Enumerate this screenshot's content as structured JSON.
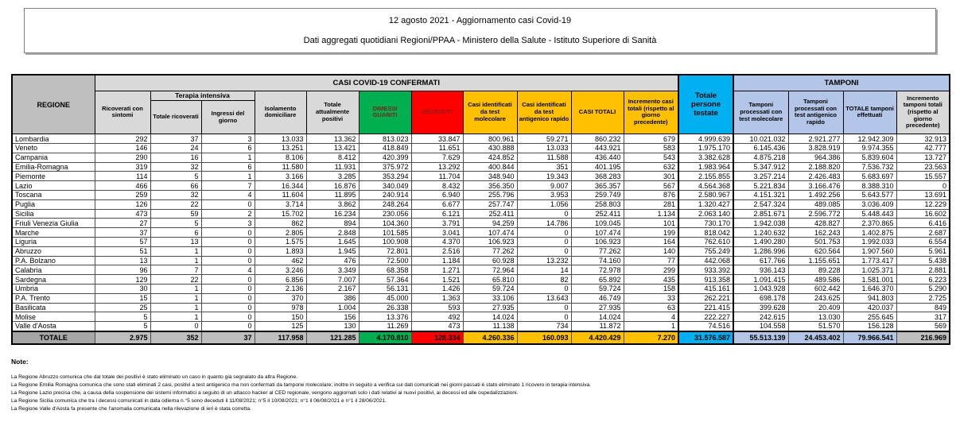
{
  "title": {
    "line1": "12 agosto 2021 - Aggiornamento casi Covid-19",
    "line2": "Dati aggregati quotidiani Regioni/PPAA - Ministero della Salute - Istituto Superiore di Sanità"
  },
  "table": {
    "group_headers": {
      "casi": "CASI COVID-19 CONFERMATI",
      "tamponi": "TAMPONI",
      "terapia_intensiva": "Terapia intensiva"
    },
    "columns": [
      "REGIONE",
      "Ricoverati con sintomi",
      "Totale ricoverati",
      "Ingressi del giorno",
      "Isolamento domiciliare",
      "Totale attualmente positivi",
      "DIMESSI GUARITI",
      "DECEDUTI",
      "Casi identificati da test molecolare",
      "Casi identificati da test antigenico rapido",
      "CASI TOTALI",
      "Incremento casi totali (rispetto al giorno precedente)",
      "Totale persone testate",
      "Tamponi processati con test molecolare",
      "Tamponi processati con test antigenico rapido",
      "TOTALE tamponi effettuati",
      "Incremento tamponi totali (rispetto al giorno precedente)"
    ],
    "rows": [
      {
        "region": "Lombardia",
        "values": [
          "292",
          "37",
          "3",
          "13.033",
          "13.362",
          "813.023",
          "33.847",
          "800.961",
          "59.271",
          "860.232",
          "679",
          "4.999.639",
          "10.021.032",
          "2.921.277",
          "12.942.309",
          "32.913"
        ]
      },
      {
        "region": "Veneto",
        "values": [
          "146",
          "24",
          "6",
          "13.251",
          "13.421",
          "418.849",
          "11.651",
          "430.888",
          "13.033",
          "443.921",
          "583",
          "1.975.170",
          "6.145.436",
          "3.828.919",
          "9.974.355",
          "42.777"
        ]
      },
      {
        "region": "Campania",
        "values": [
          "290",
          "16",
          "1",
          "8.106",
          "8.412",
          "420.399",
          "7.629",
          "424.852",
          "11.588",
          "436.440",
          "543",
          "3.382.628",
          "4.875.218",
          "964.386",
          "5.839.604",
          "13.727"
        ]
      },
      {
        "region": "Emilia-Romagna",
        "values": [
          "319",
          "32",
          "6",
          "11.580",
          "11.931",
          "375.972",
          "13.292",
          "400.844",
          "351",
          "401.195",
          "632",
          "1.983.964",
          "5.347.912",
          "2.188.820",
          "7.536.732",
          "23.563"
        ]
      },
      {
        "region": "Piemonte",
        "values": [
          "114",
          "5",
          "1",
          "3.166",
          "3.285",
          "353.294",
          "11.704",
          "348.940",
          "19.343",
          "368.283",
          "301",
          "2.155.855",
          "3.257.214",
          "2.426.483",
          "5.683.697",
          "15.557"
        ]
      },
      {
        "region": "Lazio",
        "values": [
          "466",
          "66",
          "7",
          "16.344",
          "16.876",
          "340.049",
          "8.432",
          "356.350",
          "9.007",
          "365.357",
          "567",
          "4.564.368",
          "5.221.834",
          "3.166.476",
          "8.388.310",
          "0"
        ]
      },
      {
        "region": "Toscana",
        "values": [
          "259",
          "32",
          "4",
          "11.604",
          "11.895",
          "240.914",
          "6.940",
          "255.796",
          "3.953",
          "259.749",
          "876",
          "2.580.967",
          "4.151.321",
          "1.492.256",
          "5.643.577",
          "13.691"
        ]
      },
      {
        "region": "Puglia",
        "values": [
          "126",
          "22",
          "0",
          "3.714",
          "3.862",
          "248.264",
          "6.677",
          "257.747",
          "1.056",
          "258.803",
          "281",
          "1.320.427",
          "2.547.324",
          "489.085",
          "3.036.409",
          "12.229"
        ]
      },
      {
        "region": "Sicilia",
        "values": [
          "473",
          "59",
          "2",
          "15.702",
          "16.234",
          "230.056",
          "6.121",
          "252.411",
          "0",
          "252.411",
          "1.134",
          "2.063.140",
          "2.851.671",
          "2.596.772",
          "5.448.443",
          "16.602"
        ]
      },
      {
        "region": "Friuli Venezia Giulia",
        "values": [
          "27",
          "5",
          "3",
          "862",
          "894",
          "104.360",
          "3.791",
          "94.259",
          "14.786",
          "109.045",
          "101",
          "730.170",
          "1.942.038",
          "428.827",
          "2.370.865",
          "6.416"
        ]
      },
      {
        "region": "Marche",
        "values": [
          "37",
          "6",
          "0",
          "2.805",
          "2.848",
          "101.585",
          "3.041",
          "107.474",
          "0",
          "107.474",
          "199",
          "818.042",
          "1.240.632",
          "162.243",
          "1.402.875",
          "2.687"
        ]
      },
      {
        "region": "Liguria",
        "values": [
          "57",
          "13",
          "0",
          "1.575",
          "1.645",
          "100.908",
          "4.370",
          "106.923",
          "0",
          "106.923",
          "164",
          "762.610",
          "1.490.280",
          "501.753",
          "1.992.033",
          "6.554"
        ]
      },
      {
        "region": "Abruzzo",
        "values": [
          "51",
          "1",
          "0",
          "1.893",
          "1.945",
          "72.801",
          "2.516",
          "77.262",
          "0",
          "77.262",
          "140",
          "755.249",
          "1.286.996",
          "620.564",
          "1.907.560",
          "5.961"
        ]
      },
      {
        "region": "P.A. Bolzano",
        "values": [
          "13",
          "1",
          "0",
          "462",
          "476",
          "72.500",
          "1.184",
          "60.928",
          "13.232",
          "74.160",
          "77",
          "442.068",
          "617.766",
          "1.155.651",
          "1.773.417",
          "5.438"
        ]
      },
      {
        "region": "Calabria",
        "values": [
          "96",
          "7",
          "4",
          "3.246",
          "3.349",
          "68.358",
          "1.271",
          "72.964",
          "14",
          "72.978",
          "299",
          "933.392",
          "936.143",
          "89.228",
          "1.025.371",
          "2.881"
        ]
      },
      {
        "region": "Sardegna",
        "values": [
          "129",
          "22",
          "0",
          "6.856",
          "7.007",
          "57.364",
          "1.521",
          "65.810",
          "82",
          "65.892",
          "435",
          "913.358",
          "1.091.415",
          "489.586",
          "1.581.001",
          "6.223"
        ]
      },
      {
        "region": "Umbria",
        "values": [
          "30",
          "1",
          "0",
          "2.136",
          "2.167",
          "56.131",
          "1.426",
          "59.724",
          "0",
          "59.724",
          "158",
          "415.161",
          "1.043.928",
          "602.442",
          "1.646.370",
          "5.290"
        ]
      },
      {
        "region": "P.A. Trento",
        "values": [
          "15",
          "1",
          "0",
          "370",
          "386",
          "45.000",
          "1.363",
          "33.106",
          "13.643",
          "46.749",
          "33",
          "262.221",
          "698.178",
          "243.625",
          "941.803",
          "2.725"
        ]
      },
      {
        "region": "Basilicata",
        "values": [
          "25",
          "1",
          "0",
          "978",
          "1.004",
          "26.338",
          "593",
          "27.935",
          "0",
          "27.935",
          "63",
          "221.415",
          "399.628",
          "20.409",
          "420.037",
          "849"
        ]
      },
      {
        "region": "Molise",
        "values": [
          "5",
          "1",
          "0",
          "150",
          "156",
          "13.376",
          "492",
          "14.024",
          "0",
          "14.024",
          "4",
          "222.227",
          "242.615",
          "13.030",
          "255.645",
          "317"
        ]
      },
      {
        "region": "Valle d'Aosta",
        "values": [
          "5",
          "0",
          "0",
          "125",
          "130",
          "11.269",
          "473",
          "11.138",
          "734",
          "11.872",
          "1",
          "74.516",
          "104.558",
          "51.570",
          "156.128",
          "569"
        ]
      }
    ],
    "total": {
      "region": "TOTALE",
      "values": [
        "2.975",
        "352",
        "37",
        "117.958",
        "121.285",
        "4.170.810",
        "128.334",
        "4.260.336",
        "160.093",
        "4.420.429",
        "7.270",
        "31.576.587",
        "55.513.139",
        "24.453.402",
        "79.966.541",
        "216.969"
      ]
    }
  },
  "notes": {
    "title": "Note:",
    "items": [
      "La Regione Abruzzo comunica che dal totale dei positivi è stato eliminato un caso in quanto già segnalato da altra Regione.",
      "La Regione Emilia Romagna comunica che sono stati eliminati 2 casi, positivi a test antigenico ma non confermati da tampone molecolare; inoltre in seguito a verifica sui dati comunicati nei giorni passati è stato eliminato 1 ricovero in terapia intensiva.",
      "La Regione Lazio precisa che, a causa della sospensione dei sistemi informatici a seguito di un attacco hacker al CED regionale, vengono aggiornati solo i dati relativi ai nuovi positivi, ai decessi ed alle ospedalizzazioni.",
      "La Regione Sicilia comunica che tra i decessi comunicati in data odierna n.°5 sono deceduti il 11/08/2021; n°5 il 10/08/2021; n°1 il 06/08/2021 e n°1 il 28/06/2021.",
      "La Regione Valle d'Aosta fa presente che l'anomalia comunicata nella rilevazione di ieri è stata corretta."
    ]
  },
  "colors": {
    "green": "#00b050",
    "red": "#ff0000",
    "orange": "#ffc000",
    "cyan": "#00b0f0",
    "light_blue": "#b4c6e7",
    "header_grey": "#bfbfbf",
    "subheader_grey": "#d9d9d9"
  }
}
